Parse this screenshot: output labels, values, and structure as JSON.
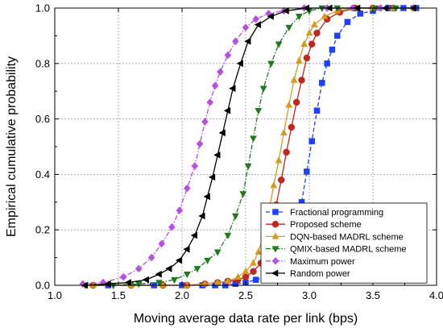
{
  "chart_data": {
    "type": "line",
    "title": "",
    "xlabel": "Moving average data rate per link (bps)",
    "ylabel": "Empirical cumulative probability",
    "xlim": [
      1.0,
      4.0
    ],
    "ylim": [
      0.0,
      1.0
    ],
    "xticks": [
      "1.0",
      "1.5",
      "2.0",
      "2.5",
      "3.0",
      "3.5",
      "4.0"
    ],
    "yticks": [
      "0.0",
      "0.2",
      "0.4",
      "0.6",
      "0.8",
      "1.0"
    ],
    "grid": true,
    "legend_position": "bottom-right",
    "series": [
      {
        "name": "Fractional programming",
        "color": "#1f3fff",
        "marker": "square",
        "dash": "dash",
        "x": [
          1.42,
          1.78,
          2.0,
          2.16,
          2.26,
          2.34,
          2.42,
          2.5,
          2.58,
          2.66,
          2.74,
          2.82,
          2.86,
          2.9,
          2.94,
          2.98,
          3.02,
          3.06,
          3.1,
          3.14,
          3.18,
          3.22,
          3.3,
          3.4,
          3.5,
          3.62,
          3.74,
          3.84
        ],
        "y": [
          0.0,
          0.0,
          0.0,
          0.0,
          0.0,
          0.0,
          0.005,
          0.01,
          0.02,
          0.03,
          0.06,
          0.1,
          0.16,
          0.22,
          0.3,
          0.41,
          0.52,
          0.63,
          0.73,
          0.8,
          0.85,
          0.9,
          0.95,
          0.98,
          0.99,
          1.0,
          1.0,
          1.0
        ]
      },
      {
        "name": "Proposed scheme",
        "color": "#c0281e",
        "marker": "circle",
        "dash": "solid",
        "x": [
          1.3,
          1.6,
          1.85,
          2.04,
          2.18,
          2.28,
          2.36,
          2.44,
          2.5,
          2.56,
          2.62,
          2.66,
          2.7,
          2.74,
          2.78,
          2.82,
          2.86,
          2.9,
          2.94,
          2.98,
          3.02,
          3.06,
          3.14,
          3.24,
          3.36,
          3.5,
          3.66,
          3.82
        ],
        "y": [
          0.0,
          0.0,
          0.0,
          0.0,
          0.005,
          0.01,
          0.015,
          0.02,
          0.03,
          0.05,
          0.08,
          0.13,
          0.2,
          0.29,
          0.38,
          0.48,
          0.57,
          0.66,
          0.74,
          0.82,
          0.87,
          0.91,
          0.96,
          0.985,
          1.0,
          1.0,
          1.0,
          1.0
        ]
      },
      {
        "name": "DQN-based MADRL scheme",
        "color": "#d79a1f",
        "marker": "triangle-up",
        "dash": "solid",
        "x": [
          1.3,
          1.6,
          1.85,
          2.04,
          2.18,
          2.28,
          2.36,
          2.44,
          2.5,
          2.56,
          2.6,
          2.64,
          2.68,
          2.72,
          2.76,
          2.8,
          2.84,
          2.88,
          2.92,
          2.96,
          3.0,
          3.04,
          3.12,
          3.22,
          3.34,
          3.5,
          3.66,
          3.82
        ],
        "y": [
          0.0,
          0.0,
          0.0,
          0.0,
          0.005,
          0.01,
          0.015,
          0.03,
          0.05,
          0.08,
          0.12,
          0.18,
          0.26,
          0.36,
          0.45,
          0.55,
          0.65,
          0.74,
          0.81,
          0.87,
          0.91,
          0.94,
          0.97,
          0.99,
          1.0,
          1.0,
          1.0,
          1.0
        ]
      },
      {
        "name": "QMIX-based MADRL scheme",
        "color": "#1f7a1f",
        "marker": "triangle-down",
        "dash": "dashdot",
        "x": [
          1.24,
          1.46,
          1.66,
          1.82,
          1.94,
          2.04,
          2.12,
          2.2,
          2.28,
          2.36,
          2.42,
          2.48,
          2.52,
          2.56,
          2.6,
          2.64,
          2.7,
          2.76,
          2.84,
          2.92,
          3.0,
          3.1,
          3.22,
          3.36,
          3.52,
          3.68,
          3.82
        ],
        "y": [
          0.0,
          0.0,
          0.005,
          0.01,
          0.02,
          0.04,
          0.06,
          0.09,
          0.12,
          0.18,
          0.25,
          0.33,
          0.43,
          0.53,
          0.63,
          0.71,
          0.8,
          0.87,
          0.93,
          0.97,
          0.99,
          1.0,
          1.0,
          1.0,
          1.0,
          1.0,
          1.0
        ]
      },
      {
        "name": "Maximum power",
        "color": "#b94ee0",
        "marker": "diamond",
        "dash": "dashdot",
        "x": [
          1.22,
          1.38,
          1.54,
          1.66,
          1.76,
          1.84,
          1.92,
          1.98,
          2.04,
          2.1,
          2.14,
          2.18,
          2.22,
          2.26,
          2.3,
          2.36,
          2.42,
          2.5,
          2.58,
          2.68,
          2.8,
          2.96,
          3.14,
          3.34,
          3.56,
          3.82
        ],
        "y": [
          0.005,
          0.01,
          0.03,
          0.06,
          0.1,
          0.15,
          0.21,
          0.27,
          0.35,
          0.43,
          0.51,
          0.59,
          0.66,
          0.72,
          0.77,
          0.83,
          0.88,
          0.93,
          0.96,
          0.98,
          0.99,
          1.0,
          1.0,
          1.0,
          1.0,
          1.0
        ]
      },
      {
        "name": "Random power",
        "color": "#000000",
        "marker": "triangle-left",
        "dash": "solid",
        "x": [
          1.24,
          1.42,
          1.58,
          1.72,
          1.82,
          1.9,
          1.98,
          2.04,
          2.1,
          2.16,
          2.2,
          2.24,
          2.28,
          2.32,
          2.36,
          2.4,
          2.46,
          2.52,
          2.6,
          2.7,
          2.82,
          2.98,
          3.16,
          3.38,
          3.6,
          3.82
        ],
        "y": [
          0.0,
          0.005,
          0.01,
          0.02,
          0.04,
          0.06,
          0.09,
          0.13,
          0.18,
          0.25,
          0.32,
          0.39,
          0.47,
          0.55,
          0.63,
          0.71,
          0.8,
          0.88,
          0.94,
          0.97,
          0.99,
          1.0,
          1.0,
          1.0,
          1.0,
          1.0
        ]
      }
    ]
  }
}
